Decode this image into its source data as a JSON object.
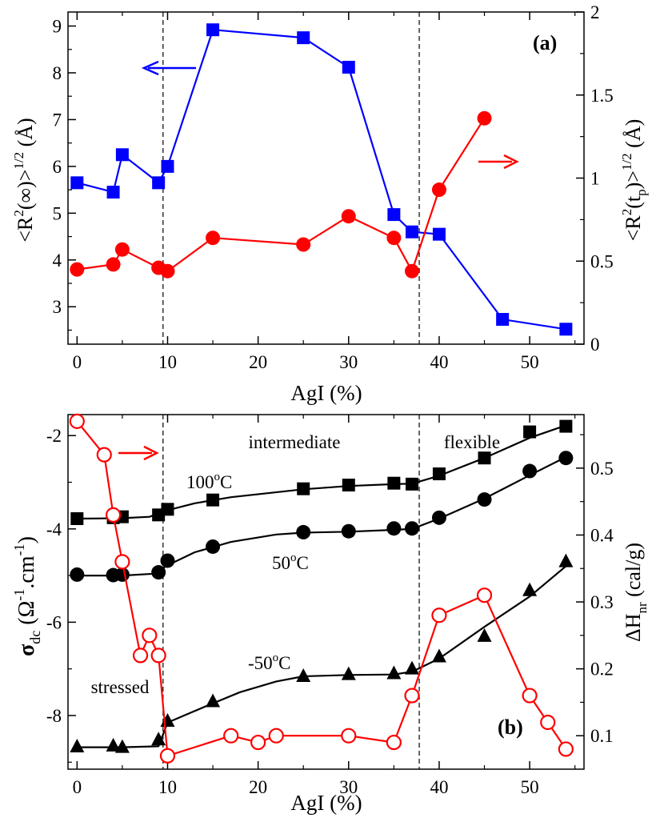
{
  "chart_data": [
    {
      "type": "line",
      "panel_label": "(a)",
      "xlabel": "AgI (%)",
      "ylabel_left": "<R2(∞)>1/2 (Å)",
      "ylabel_left_parts": [
        "<R",
        "2",
        "(∞)>",
        "1/2",
        " (Å)"
      ],
      "ylabel_right": "<R2(tp)>1/2 (Å)",
      "ylabel_right_parts": [
        "<R",
        "2",
        "(t",
        "p",
        ")>",
        "1/2",
        " (Å)"
      ],
      "xlim": [
        -1,
        56
      ],
      "ylim_left": [
        2.2,
        9.3
      ],
      "ylim_right": [
        0,
        2
      ],
      "x_ticks": [
        0,
        10,
        20,
        30,
        40,
        50
      ],
      "y_ticks_left": [
        3,
        4,
        5,
        6,
        7,
        8,
        9
      ],
      "y_ticks_right": [
        0,
        0.5,
        1,
        1.5,
        2
      ],
      "y_tick_labels_right": [
        "0",
        "0.5",
        "1",
        "1.5",
        "2"
      ],
      "vlines": [
        9.5,
        37.8
      ],
      "series": [
        {
          "name": "<R2(∞)>1/2",
          "axis": "left",
          "color": "#0000ff",
          "marker": "square",
          "x": [
            0,
            4,
            5,
            9,
            10,
            15,
            25,
            30,
            35,
            37,
            40,
            47,
            54
          ],
          "y": [
            5.65,
            5.45,
            6.25,
            5.65,
            6.0,
            8.92,
            8.75,
            8.12,
            4.97,
            4.6,
            4.55,
            2.73,
            2.52
          ]
        },
        {
          "name": "<R2(tp)>1/2",
          "axis": "right",
          "color": "#ff0000",
          "marker": "circle",
          "x": [
            0,
            4,
            5,
            9,
            10,
            15,
            25,
            30,
            35,
            37,
            40,
            45
          ],
          "y": [
            0.45,
            0.48,
            0.57,
            0.46,
            0.44,
            0.64,
            0.6,
            0.77,
            0.64,
            0.44,
            0.93,
            1.36
          ]
        }
      ],
      "arrows": {
        "left_color": "#0000ff",
        "right_color": "#ff0000"
      }
    },
    {
      "type": "line",
      "panel_label": "(b)",
      "xlabel": "AgI (%)",
      "ylabel_left": "σdc (Ω-1.cm-1)",
      "ylabel_left_parts": [
        "σ",
        "dc",
        " (Ω",
        "-1",
        ".cm",
        "-1",
        ")"
      ],
      "ylabel_right": "ΔHnr (cal/g)",
      "ylabel_right_parts": [
        "ΔH",
        "nr",
        " (cal/g)"
      ],
      "xlim": [
        -1,
        56
      ],
      "ylim_left": [
        -9.15,
        -1.55
      ],
      "ylim_right": [
        0.05,
        0.58
      ],
      "x_ticks": [
        0,
        10,
        20,
        30,
        40,
        50
      ],
      "y_ticks_left": [
        -8,
        -6,
        -4,
        -2
      ],
      "y_ticks_right": [
        0.1,
        0.2,
        0.3,
        0.4,
        0.5
      ],
      "y_tick_labels_right": [
        "0.1",
        "0.2",
        "0.3",
        "0.4",
        "0.5"
      ],
      "vlines": [
        9.5,
        37.8
      ],
      "region_labels": [
        "intermediate",
        "flexible",
        "stressed"
      ],
      "series": [
        {
          "name": "100oC",
          "label_parts": [
            "100",
            "o",
            "C"
          ],
          "axis": "left",
          "color": "#000000",
          "marker": "square",
          "x": [
            0,
            4,
            5,
            9,
            10,
            15,
            25,
            30,
            35,
            37,
            40,
            45,
            50,
            54
          ],
          "y": [
            -3.78,
            -3.76,
            -3.74,
            -3.7,
            -3.58,
            -3.38,
            -3.14,
            -3.06,
            -3.02,
            -3.04,
            -2.82,
            -2.48,
            -1.92,
            -1.8
          ],
          "fit": [
            [
              0,
              -3.78
            ],
            [
              5,
              -3.77
            ],
            [
              8,
              -3.74
            ],
            [
              10,
              -3.6
            ],
            [
              13,
              -3.45
            ],
            [
              17,
              -3.32
            ],
            [
              25,
              -3.15
            ],
            [
              30,
              -3.08
            ],
            [
              35,
              -3.04
            ],
            [
              37,
              -3.03
            ],
            [
              40,
              -2.86
            ],
            [
              45,
              -2.48
            ],
            [
              50,
              -2.05
            ],
            [
              54,
              -1.78
            ]
          ]
        },
        {
          "name": "50oC",
          "label_parts": [
            "50",
            "o",
            "C"
          ],
          "axis": "left",
          "color": "#000000",
          "marker": "circle",
          "x": [
            0,
            4,
            5,
            9,
            10,
            15,
            25,
            30,
            35,
            37,
            40,
            45,
            50,
            54
          ],
          "y": [
            -4.98,
            -4.99,
            -4.98,
            -4.93,
            -4.68,
            -4.38,
            -4.07,
            -4.05,
            -3.99,
            -3.99,
            -3.76,
            -3.37,
            -2.76,
            -2.48
          ],
          "fit": [
            [
              0,
              -5.0
            ],
            [
              5,
              -5.0
            ],
            [
              8.5,
              -4.96
            ],
            [
              10,
              -4.78
            ],
            [
              13,
              -4.5
            ],
            [
              17,
              -4.28
            ],
            [
              22,
              -4.12
            ],
            [
              25,
              -4.08
            ],
            [
              30,
              -4.06
            ],
            [
              35,
              -4.02
            ],
            [
              37,
              -4.0
            ],
            [
              40,
              -3.78
            ],
            [
              45,
              -3.35
            ],
            [
              50,
              -2.85
            ],
            [
              54,
              -2.46
            ]
          ]
        },
        {
          "name": "-50oC",
          "label_parts": [
            "-50",
            "o",
            "C"
          ],
          "axis": "left",
          "color": "#000000",
          "marker": "triangle",
          "x": [
            0,
            4,
            5,
            9,
            10,
            15,
            25,
            30,
            35,
            37,
            40,
            45,
            50,
            54
          ],
          "y": [
            -8.67,
            -8.65,
            -8.68,
            -8.52,
            -8.12,
            -7.7,
            -7.16,
            -7.12,
            -7.1,
            -7.0,
            -6.74,
            -6.3,
            -5.32,
            -4.7
          ],
          "fit": [
            [
              0,
              -8.68
            ],
            [
              5,
              -8.68
            ],
            [
              9,
              -8.66
            ],
            [
              10,
              -8.15
            ],
            [
              14,
              -7.82
            ],
            [
              18,
              -7.5
            ],
            [
              22,
              -7.27
            ],
            [
              25,
              -7.16
            ],
            [
              30,
              -7.13
            ],
            [
              35,
              -7.12
            ],
            [
              37,
              -7.06
            ],
            [
              40,
              -6.78
            ],
            [
              45,
              -6.1
            ],
            [
              50,
              -5.45
            ],
            [
              54,
              -4.8
            ]
          ]
        },
        {
          "name": "ΔHnr",
          "axis": "right",
          "color": "#ff0000",
          "marker": "open-circle",
          "x": [
            0,
            3,
            4,
            5,
            7,
            8,
            9,
            10,
            17,
            20,
            22,
            30,
            35,
            37,
            40,
            45,
            50,
            52,
            54
          ],
          "y": [
            0.57,
            0.52,
            0.43,
            0.36,
            0.22,
            0.25,
            0.22,
            0.07,
            0.1,
            0.09,
            0.1,
            0.1,
            0.09,
            0.16,
            0.28,
            0.31,
            0.16,
            0.12,
            0.08
          ]
        }
      ],
      "arrows": {
        "right_color": "#ff0000"
      }
    }
  ]
}
